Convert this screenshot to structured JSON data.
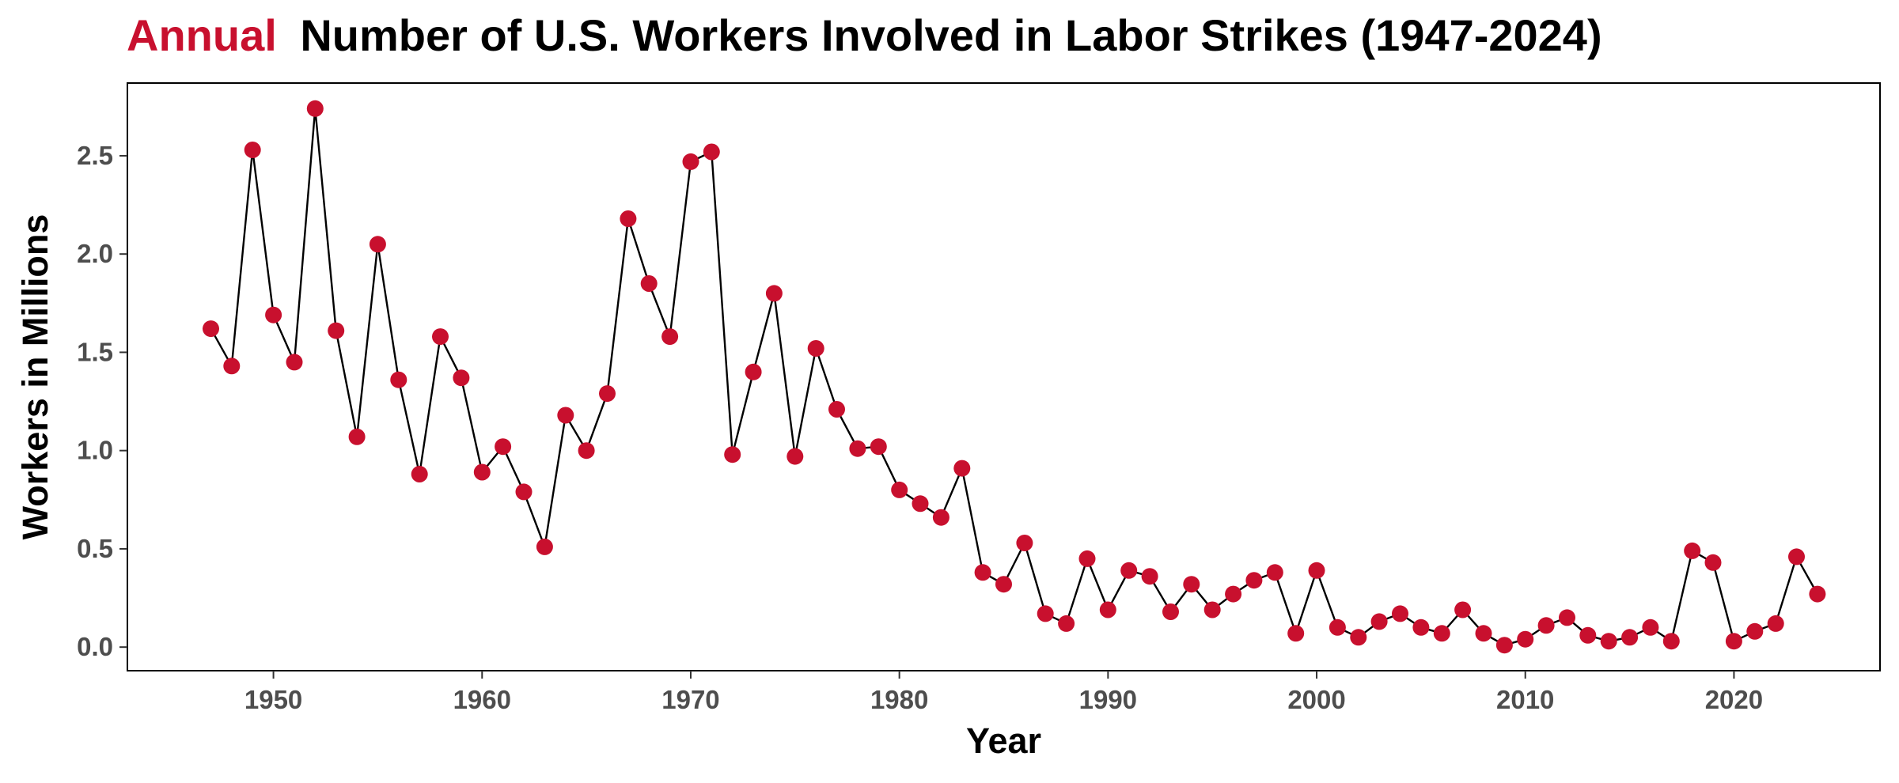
{
  "chart_data": {
    "type": "line",
    "title_highlight": "Annual",
    "title_rest": "Number of U.S. Workers Involved in Labor Strikes (1947-2024)",
    "xlabel": "Year",
    "ylabel": "Workers in Millions",
    "xlim": [
      1943,
      2027
    ],
    "ylim": [
      -0.12,
      2.87
    ],
    "x_ticks": [
      1950,
      1960,
      1970,
      1980,
      1990,
      2000,
      2010,
      2020
    ],
    "y_ticks": [
      0.0,
      0.5,
      1.0,
      1.5,
      2.0,
      2.5
    ],
    "y_tick_labels": [
      "0.0",
      "0.5",
      "1.0",
      "1.5",
      "2.0",
      "2.5"
    ],
    "grid": false,
    "legend": "none",
    "colors": {
      "highlight": "#c8102e",
      "points": "#c8102e",
      "line": "#000000",
      "frame": "#000000"
    },
    "series": [
      {
        "x": [
          1947,
          1948,
          1949,
          1950,
          1951,
          1952,
          1953,
          1954,
          1955,
          1956,
          1957,
          1958,
          1959,
          1960,
          1961,
          1962,
          1963,
          1964,
          1965,
          1966,
          1967,
          1968,
          1969,
          1970,
          1971,
          1972,
          1973,
          1974,
          1975,
          1976,
          1977,
          1978,
          1979,
          1980,
          1981,
          1982,
          1983,
          1984,
          1985,
          1986,
          1987,
          1988,
          1989,
          1990,
          1991,
          1992,
          1993,
          1994,
          1995,
          1996,
          1997,
          1998,
          1999,
          2000,
          2001,
          2002,
          2003,
          2004,
          2005,
          2006,
          2007,
          2008,
          2009,
          2010,
          2011,
          2012,
          2013,
          2014,
          2015,
          2016,
          2017,
          2018,
          2019,
          2020,
          2021,
          2022,
          2023,
          2024
        ],
        "values": [
          1.62,
          1.43,
          2.53,
          1.69,
          1.45,
          2.74,
          1.61,
          1.07,
          2.05,
          1.36,
          0.88,
          1.58,
          1.37,
          0.89,
          1.02,
          0.79,
          0.51,
          1.18,
          1.0,
          1.29,
          2.18,
          1.85,
          1.58,
          2.47,
          2.52,
          0.98,
          1.4,
          1.8,
          0.97,
          1.52,
          1.21,
          1.01,
          1.02,
          0.8,
          0.73,
          0.66,
          0.91,
          0.38,
          0.32,
          0.53,
          0.17,
          0.12,
          0.45,
          0.19,
          0.39,
          0.36,
          0.18,
          0.32,
          0.19,
          0.27,
          0.34,
          0.38,
          0.07,
          0.39,
          0.1,
          0.05,
          0.13,
          0.17,
          0.1,
          0.07,
          0.19,
          0.07,
          0.01,
          0.04,
          0.11,
          0.15,
          0.06,
          0.03,
          0.05,
          0.1,
          0.03,
          0.49,
          0.43,
          0.03,
          0.08,
          0.12,
          0.46,
          0.27
        ]
      }
    ]
  }
}
